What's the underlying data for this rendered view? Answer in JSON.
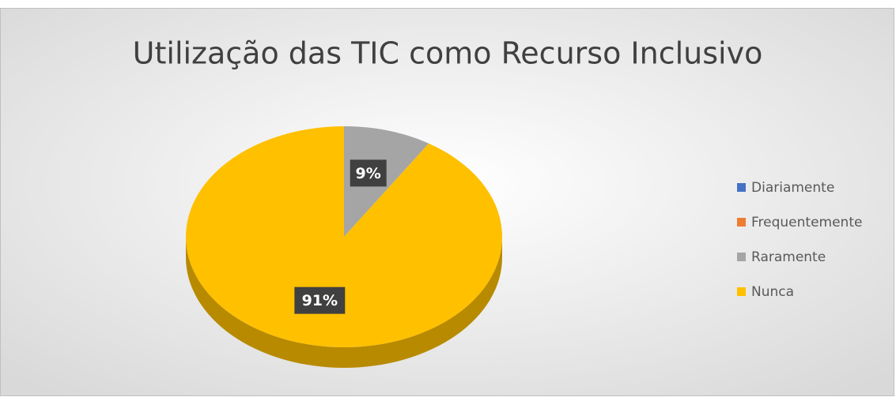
{
  "chart_data": {
    "type": "pie",
    "title": "Utilização das TIC como Recurso Inclusivo",
    "categories": [
      "Diariamente",
      "Frequentemente",
      "Raramente",
      "Nunca"
    ],
    "values": [
      0,
      0,
      9,
      91
    ],
    "value_labels": [
      null,
      null,
      "9%",
      "91%"
    ],
    "colors": [
      "#4472c4",
      "#ed7d31",
      "#a5a5a5",
      "#ffc000"
    ],
    "legend": "right"
  }
}
